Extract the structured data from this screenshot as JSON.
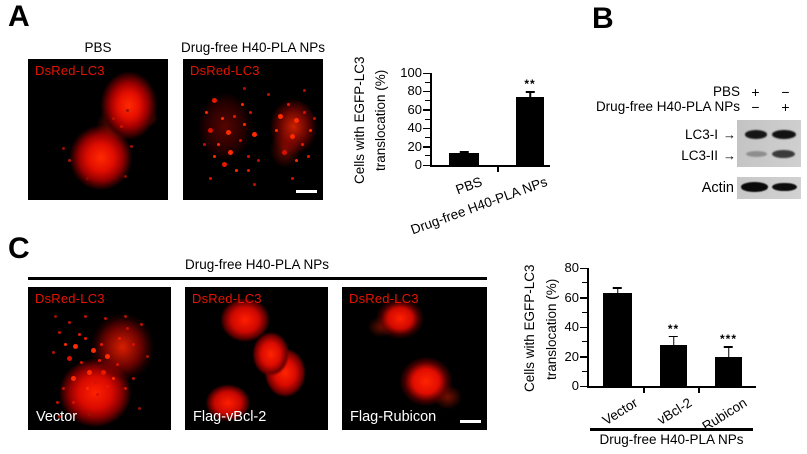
{
  "figure": {
    "panel_a": {
      "label": "A",
      "images": [
        {
          "title": "PBS",
          "overlay": "DsRed-LC3"
        },
        {
          "title": "Drug-free H40-PLA NPs",
          "overlay": "DsRed-LC3"
        }
      ]
    },
    "panel_b": {
      "label": "B",
      "condition_rows": [
        {
          "label": "PBS",
          "lanes": [
            "+",
            "−"
          ]
        },
        {
          "label": "Drug-free H40-PLA NPs",
          "lanes": [
            "−",
            "+"
          ]
        }
      ],
      "blot_rows": [
        {
          "label": "LC3-I",
          "arrow": "→"
        },
        {
          "label": "LC3-II",
          "arrow": "→"
        }
      ],
      "loading_control": "Actin"
    },
    "panel_c": {
      "label": "C",
      "header": "Drug-free H40-PLA NPs",
      "images": [
        {
          "overlay": "DsRed-LC3",
          "caption": "Vector"
        },
        {
          "overlay": "DsRed-LC3",
          "caption": "Flag-vBcl-2"
        },
        {
          "overlay": "DsRed-LC3",
          "caption": "Flag-Rubicon"
        }
      ]
    }
  },
  "chart_data": [
    {
      "id": "panel-a-bar-chart",
      "type": "bar",
      "ylabel_lines": [
        "Cells with EGFP-LC3",
        "translocation (%)"
      ],
      "categories": [
        "PBS",
        "Drug-free H40-PLA NPs"
      ],
      "values": [
        13,
        74
      ],
      "errors": [
        2,
        6
      ],
      "significance": [
        "",
        "**"
      ],
      "yticks": [
        0,
        20,
        40,
        60,
        80,
        100
      ],
      "ylim": [
        0,
        100
      ],
      "bar_color": "#000000",
      "grid": false
    },
    {
      "id": "panel-c-bar-chart",
      "type": "bar",
      "ylabel_lines": [
        "Cells with EGFP-LC3",
        "translocation (%)"
      ],
      "categories": [
        "Vector",
        "vBcl-2",
        "Rubicon"
      ],
      "values": [
        63,
        28,
        20
      ],
      "errors": [
        4,
        6,
        7
      ],
      "significance": [
        "",
        "**",
        "***"
      ],
      "yticks": [
        0,
        20,
        40,
        60,
        80
      ],
      "ylim": [
        0,
        80
      ],
      "group_label": "Drug-free H40-PLA NPs",
      "bar_color": "#000000",
      "grid": false
    }
  ],
  "appearance": {
    "background": "#ffffff",
    "micrograph_background": "#000000",
    "fluorophore_label_color": "#e41400",
    "cell_signal_color": "#ff2000",
    "bar_color": "#000000"
  }
}
